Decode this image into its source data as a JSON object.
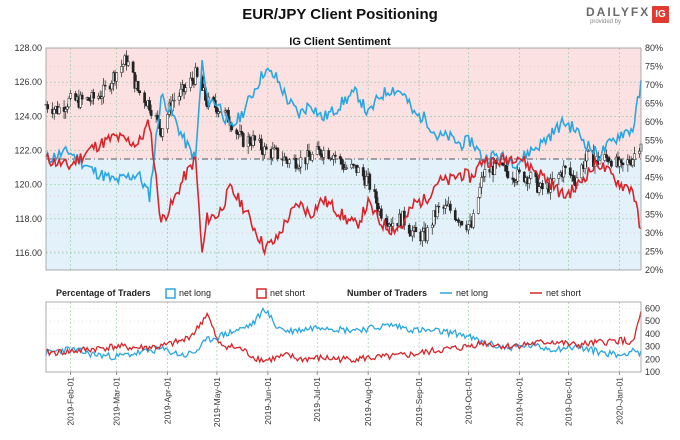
{
  "title": "EUR/JPY Client Positioning",
  "logo": {
    "brand": "DAILYFX",
    "sub": "provided by",
    "badge": "IG",
    "badge_color": "#e23a30"
  },
  "colors": {
    "net_long": "#2aa7e0",
    "net_short": "#d8252a",
    "long_zone": "#e3f1fb",
    "short_zone": "#fbe1e1",
    "candle_bull": "#ffffff",
    "candle_bear": "#222222"
  },
  "chart_data": [
    {
      "type": "candlestick",
      "title": "IG Client Sentiment",
      "left_axis": {
        "ylim": [
          115.0,
          128.0
        ],
        "ticks": [
          "116.00",
          "118.00",
          "120.00",
          "122.00",
          "124.00",
          "126.00",
          "128.00"
        ]
      },
      "right_axis": {
        "ylim": [
          20,
          80
        ],
        "ticks": [
          "20%",
          "25%",
          "30%",
          "35%",
          "40%",
          "45%",
          "50%",
          "55%",
          "60%",
          "65%",
          "70%",
          "75%",
          "80%"
        ]
      },
      "reference_lines": {
        "left_price": [
          121.5
        ],
        "right_percent": [
          50
        ]
      },
      "x_ticks": [
        "2019-Feb-01",
        "2019-Mar-01",
        "2019-Apr-01",
        "2019-May-01",
        "2019-Jun-01",
        "2019-Jul-01",
        "2019-Aug-01",
        "2019-Sep-01",
        "2019-Oct-01",
        "2019-Nov-01",
        "2019-Dec-01",
        "2020-Jan-01"
      ],
      "x_range": [
        "2019-01-17",
        "2020-01-14"
      ],
      "grid": true,
      "price_close": [
        [
          "2019-01-17",
          124.7
        ],
        [
          "2019-01-24",
          124.4
        ],
        [
          "2019-01-31",
          124.9
        ],
        [
          "2019-02-07",
          124.9
        ],
        [
          "2019-02-14",
          125.0
        ],
        [
          "2019-02-21",
          125.4
        ],
        [
          "2019-02-28",
          126.5
        ],
        [
          "2019-03-07",
          127.3
        ],
        [
          "2019-03-14",
          125.5
        ],
        [
          "2019-03-21",
          124.7
        ],
        [
          "2019-03-28",
          123.2
        ],
        [
          "2019-04-04",
          124.9
        ],
        [
          "2019-04-11",
          125.5
        ],
        [
          "2019-04-18",
          126.4
        ],
        [
          "2019-04-25",
          124.8
        ],
        [
          "2019-05-02",
          124.5
        ],
        [
          "2019-05-09",
          123.8
        ],
        [
          "2019-05-16",
          122.6
        ],
        [
          "2019-05-23",
          122.6
        ],
        [
          "2019-05-30",
          122.0
        ],
        [
          "2019-06-06",
          121.8
        ],
        [
          "2019-06-13",
          121.4
        ],
        [
          "2019-06-20",
          121.4
        ],
        [
          "2019-06-27",
          121.6
        ],
        [
          "2019-07-04",
          122.0
        ],
        [
          "2019-07-11",
          121.8
        ],
        [
          "2019-07-18",
          121.0
        ],
        [
          "2019-07-25",
          120.9
        ],
        [
          "2019-08-01",
          120.2
        ],
        [
          "2019-08-08",
          118.5
        ],
        [
          "2019-08-15",
          117.8
        ],
        [
          "2019-08-22",
          118.0
        ],
        [
          "2019-08-29",
          117.1
        ],
        [
          "2019-09-05",
          117.0
        ],
        [
          "2019-09-12",
          118.5
        ],
        [
          "2019-09-19",
          118.6
        ],
        [
          "2019-09-26",
          118.0
        ],
        [
          "2019-10-03",
          117.5
        ],
        [
          "2019-10-10",
          120.6
        ],
        [
          "2019-10-17",
          121.0
        ],
        [
          "2019-10-24",
          120.8
        ],
        [
          "2019-10-31",
          120.5
        ],
        [
          "2019-11-07",
          120.5
        ],
        [
          "2019-11-14",
          119.7
        ],
        [
          "2019-11-21",
          120.0
        ],
        [
          "2019-11-28",
          120.9
        ],
        [
          "2019-12-05",
          120.3
        ],
        [
          "2019-12-12",
          121.6
        ],
        [
          "2019-12-19",
          121.4
        ],
        [
          "2019-12-26",
          121.6
        ],
        [
          "2020-01-02",
          120.9
        ],
        [
          "2020-01-09",
          121.6
        ],
        [
          "2020-01-14",
          122.6
        ]
      ],
      "net_long_pct": [
        [
          "2019-01-17",
          50
        ],
        [
          "2019-01-31",
          52
        ],
        [
          "2019-02-14",
          47
        ],
        [
          "2019-02-28",
          44
        ],
        [
          "2019-03-14",
          46
        ],
        [
          "2019-03-21",
          40
        ],
        [
          "2019-03-28",
          67
        ],
        [
          "2019-04-04",
          62
        ],
        [
          "2019-04-11",
          55
        ],
        [
          "2019-04-18",
          50
        ],
        [
          "2019-04-22",
          76
        ],
        [
          "2019-04-25",
          66
        ],
        [
          "2019-05-02",
          65
        ],
        [
          "2019-05-09",
          58
        ],
        [
          "2019-05-16",
          62
        ],
        [
          "2019-05-23",
          68
        ],
        [
          "2019-05-30",
          74
        ],
        [
          "2019-06-06",
          72
        ],
        [
          "2019-06-13",
          66
        ],
        [
          "2019-06-20",
          62
        ],
        [
          "2019-06-27",
          65
        ],
        [
          "2019-07-04",
          61
        ],
        [
          "2019-07-11",
          63
        ],
        [
          "2019-07-18",
          66
        ],
        [
          "2019-07-25",
          68
        ],
        [
          "2019-08-01",
          62
        ],
        [
          "2019-08-08",
          67
        ],
        [
          "2019-08-15",
          69
        ],
        [
          "2019-08-22",
          68
        ],
        [
          "2019-08-29",
          62
        ],
        [
          "2019-09-05",
          61
        ],
        [
          "2019-09-12",
          56
        ],
        [
          "2019-09-19",
          56
        ],
        [
          "2019-09-26",
          54
        ],
        [
          "2019-10-03",
          55
        ],
        [
          "2019-10-10",
          50
        ],
        [
          "2019-10-17",
          51
        ],
        [
          "2019-10-24",
          50
        ],
        [
          "2019-10-31",
          49
        ],
        [
          "2019-11-07",
          52
        ],
        [
          "2019-11-14",
          54
        ],
        [
          "2019-11-21",
          57
        ],
        [
          "2019-11-28",
          60
        ],
        [
          "2019-12-05",
          58
        ],
        [
          "2019-12-12",
          54
        ],
        [
          "2019-12-19",
          51
        ],
        [
          "2019-12-26",
          54
        ],
        [
          "2020-01-02",
          57
        ],
        [
          "2020-01-09",
          58
        ],
        [
          "2020-01-14",
          70
        ]
      ],
      "net_short_pct": [
        [
          "2019-01-17",
          50
        ],
        [
          "2019-01-31",
          48
        ],
        [
          "2019-02-14",
          53
        ],
        [
          "2019-02-28",
          56
        ],
        [
          "2019-03-14",
          54
        ],
        [
          "2019-03-21",
          60
        ],
        [
          "2019-03-28",
          33
        ],
        [
          "2019-04-04",
          38
        ],
        [
          "2019-04-11",
          45
        ],
        [
          "2019-04-18",
          50
        ],
        [
          "2019-04-22",
          24
        ],
        [
          "2019-04-25",
          34
        ],
        [
          "2019-05-02",
          35
        ],
        [
          "2019-05-09",
          42
        ],
        [
          "2019-05-16",
          38
        ],
        [
          "2019-05-23",
          32
        ],
        [
          "2019-05-30",
          26
        ],
        [
          "2019-06-06",
          28
        ],
        [
          "2019-06-13",
          34
        ],
        [
          "2019-06-20",
          38
        ],
        [
          "2019-06-27",
          35
        ],
        [
          "2019-07-04",
          39
        ],
        [
          "2019-07-11",
          37
        ],
        [
          "2019-07-18",
          34
        ],
        [
          "2019-07-25",
          32
        ],
        [
          "2019-08-01",
          38
        ],
        [
          "2019-08-08",
          33
        ],
        [
          "2019-08-15",
          31
        ],
        [
          "2019-08-22",
          32
        ],
        [
          "2019-08-29",
          38
        ],
        [
          "2019-09-05",
          39
        ],
        [
          "2019-09-12",
          44
        ],
        [
          "2019-09-19",
          44
        ],
        [
          "2019-09-26",
          46
        ],
        [
          "2019-10-03",
          45
        ],
        [
          "2019-10-10",
          50
        ],
        [
          "2019-10-17",
          49
        ],
        [
          "2019-10-24",
          50
        ],
        [
          "2019-10-31",
          51
        ],
        [
          "2019-11-07",
          48
        ],
        [
          "2019-11-14",
          46
        ],
        [
          "2019-11-21",
          43
        ],
        [
          "2019-11-28",
          40
        ],
        [
          "2019-12-05",
          42
        ],
        [
          "2019-12-12",
          46
        ],
        [
          "2019-12-19",
          49
        ],
        [
          "2019-12-26",
          46
        ],
        [
          "2020-01-02",
          43
        ],
        [
          "2020-01-09",
          42
        ],
        [
          "2020-01-14",
          30
        ]
      ]
    },
    {
      "type": "line",
      "legend_left": {
        "title": "Percentage of Traders",
        "items": [
          "net long",
          "net short"
        ]
      },
      "legend_right": {
        "title": "Number of Traders",
        "items": [
          "net long",
          "net short"
        ]
      },
      "right_axis": {
        "ylim": [
          100,
          650
        ],
        "ticks": [
          "100",
          "200",
          "300",
          "400",
          "500",
          "600"
        ]
      },
      "series": [
        {
          "name": "net long",
          "values": [
            [
              "2019-01-17",
              250
            ],
            [
              "2019-01-31",
              280
            ],
            [
              "2019-02-14",
              240
            ],
            [
              "2019-02-28",
              220
            ],
            [
              "2019-03-14",
              250
            ],
            [
              "2019-03-28",
              280
            ],
            [
              "2019-04-11",
              230
            ],
            [
              "2019-04-18",
              260
            ],
            [
              "2019-04-25",
              350
            ],
            [
              "2019-05-02",
              380
            ],
            [
              "2019-05-16",
              440
            ],
            [
              "2019-05-23",
              480
            ],
            [
              "2019-05-30",
              600
            ],
            [
              "2019-06-06",
              460
            ],
            [
              "2019-06-13",
              420
            ],
            [
              "2019-06-20",
              430
            ],
            [
              "2019-07-04",
              460
            ],
            [
              "2019-07-18",
              430
            ],
            [
              "2019-08-01",
              440
            ],
            [
              "2019-08-15",
              470
            ],
            [
              "2019-08-29",
              430
            ],
            [
              "2019-09-12",
              420
            ],
            [
              "2019-09-26",
              400
            ],
            [
              "2019-10-10",
              330
            ],
            [
              "2019-10-24",
              290
            ],
            [
              "2019-11-07",
              310
            ],
            [
              "2019-11-21",
              280
            ],
            [
              "2019-12-05",
              300
            ],
            [
              "2019-12-19",
              260
            ],
            [
              "2020-01-02",
              230
            ],
            [
              "2020-01-09",
              280
            ],
            [
              "2020-01-14",
              240
            ]
          ]
        },
        {
          "name": "net short",
          "values": [
            [
              "2019-01-17",
              250
            ],
            [
              "2019-01-31",
              260
            ],
            [
              "2019-02-14",
              280
            ],
            [
              "2019-02-28",
              300
            ],
            [
              "2019-03-14",
              290
            ],
            [
              "2019-03-28",
              300
            ],
            [
              "2019-04-11",
              350
            ],
            [
              "2019-04-18",
              420
            ],
            [
              "2019-04-25",
              560
            ],
            [
              "2019-05-02",
              320
            ],
            [
              "2019-05-16",
              280
            ],
            [
              "2019-05-23",
              220
            ],
            [
              "2019-05-30",
              190
            ],
            [
              "2019-06-06",
              210
            ],
            [
              "2019-06-13",
              230
            ],
            [
              "2019-06-20",
              200
            ],
            [
              "2019-07-04",
              210
            ],
            [
              "2019-07-18",
              200
            ],
            [
              "2019-08-01",
              210
            ],
            [
              "2019-08-15",
              220
            ],
            [
              "2019-08-29",
              240
            ],
            [
              "2019-09-12",
              270
            ],
            [
              "2019-09-26",
              290
            ],
            [
              "2019-10-10",
              330
            ],
            [
              "2019-10-24",
              300
            ],
            [
              "2019-11-07",
              320
            ],
            [
              "2019-11-21",
              340
            ],
            [
              "2019-12-05",
              310
            ],
            [
              "2019-12-19",
              330
            ],
            [
              "2020-01-02",
              350
            ],
            [
              "2020-01-09",
              320
            ],
            [
              "2020-01-14",
              570
            ]
          ]
        }
      ]
    }
  ]
}
